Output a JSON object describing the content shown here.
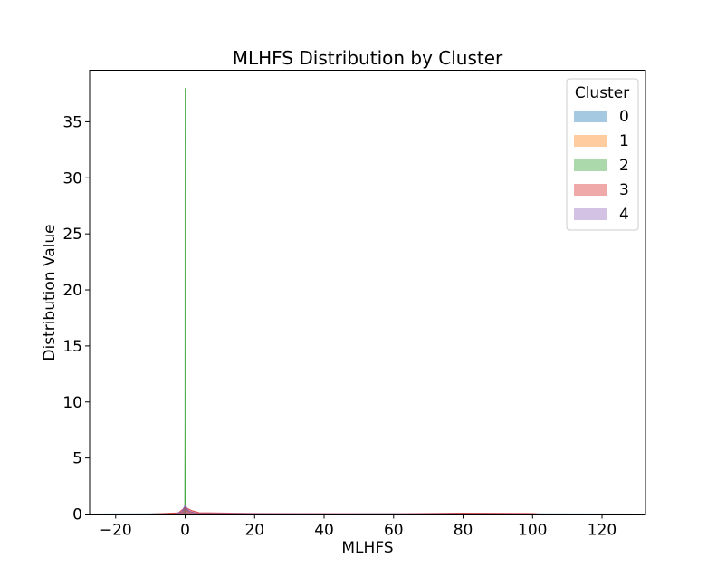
{
  "chart_data": {
    "type": "area",
    "title": "MLHFS Distribution by Cluster",
    "xlabel": "MLHFS",
    "ylabel": "Distribution Value",
    "xlim": [
      -27.5,
      132.5
    ],
    "ylim": [
      0,
      39.6
    ],
    "xticks": [
      -20,
      0,
      20,
      40,
      60,
      80,
      100,
      120
    ],
    "yticks": [
      0,
      5,
      10,
      15,
      20,
      25,
      30,
      35
    ],
    "grid": false,
    "legend": {
      "title": "Cluster",
      "placement": "top-right"
    },
    "series": [
      {
        "name": "0",
        "color": "#1f77b4",
        "points": [
          [
            -27,
            0
          ],
          [
            -10,
            0.02
          ],
          [
            -3,
            0.05
          ],
          [
            -1,
            0.15
          ],
          [
            0,
            0.6
          ],
          [
            1,
            0.25
          ],
          [
            3,
            0.08
          ],
          [
            10,
            0.04
          ],
          [
            40,
            0.02
          ],
          [
            80,
            0.04
          ],
          [
            100,
            0.02
          ],
          [
            131,
            0
          ]
        ]
      },
      {
        "name": "1",
        "color": "#ff7f0e",
        "points": [
          [
            -5,
            0
          ],
          [
            -2,
            0.06
          ],
          [
            -0.6,
            0.15
          ],
          [
            0,
            0.5
          ],
          [
            0.6,
            0.25
          ],
          [
            2,
            0.08
          ],
          [
            6,
            0.01
          ],
          [
            10,
            0
          ]
        ]
      },
      {
        "name": "2",
        "color": "#2ca02c",
        "points": [
          [
            -0.4,
            0
          ],
          [
            -0.12,
            0.2
          ],
          [
            -0.05,
            8
          ],
          [
            0,
            38
          ],
          [
            0.05,
            8
          ],
          [
            0.12,
            0.2
          ],
          [
            0.4,
            0
          ]
        ]
      },
      {
        "name": "3",
        "color": "#d62728",
        "points": [
          [
            -10,
            0
          ],
          [
            -2,
            0.1
          ],
          [
            0,
            0.6
          ],
          [
            2,
            0.3
          ],
          [
            4,
            0.12
          ],
          [
            20,
            0.05
          ],
          [
            60,
            0.02
          ],
          [
            80,
            0.08
          ],
          [
            100,
            0.05
          ],
          [
            102,
            0
          ]
        ]
      },
      {
        "name": "4",
        "color": "#9467bd",
        "points": [
          [
            -3,
            0
          ],
          [
            -1,
            0.2
          ],
          [
            0,
            0.8
          ],
          [
            1,
            0.3
          ],
          [
            3,
            0.05
          ],
          [
            40,
            0.02
          ],
          [
            80,
            0.01
          ],
          [
            100,
            0
          ]
        ]
      }
    ]
  }
}
